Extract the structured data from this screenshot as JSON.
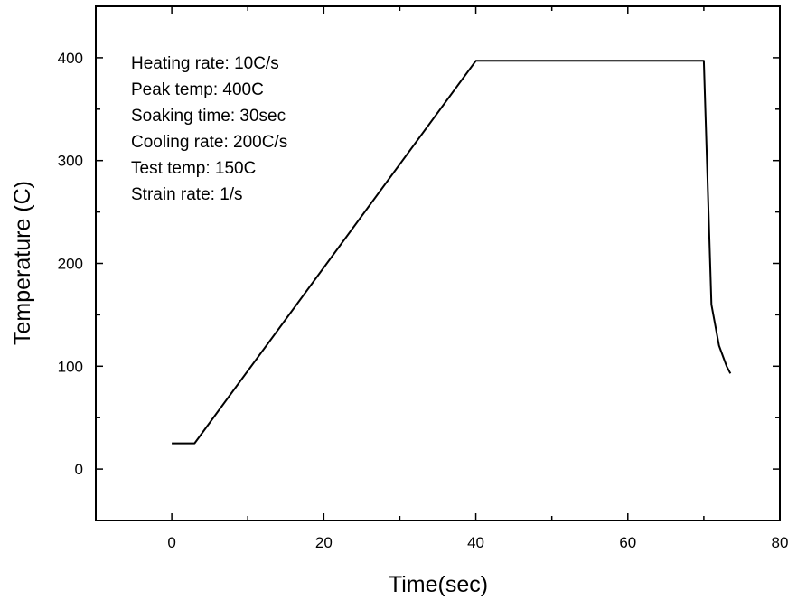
{
  "chart_data": {
    "type": "line",
    "title": "",
    "xlabel": "Time(sec)",
    "ylabel": "Temperature (C)",
    "xlim": [
      -10,
      80
    ],
    "ylim": [
      -50,
      450
    ],
    "xticks": [
      0,
      20,
      40,
      60,
      80
    ],
    "yticks": [
      0,
      100,
      200,
      300,
      400
    ],
    "grid": false,
    "legend": "none",
    "line_color": "#000000",
    "series": [
      {
        "x": [
          0,
          3,
          40,
          70,
          71,
          72,
          73,
          73.5
        ],
        "y": [
          25,
          25,
          397,
          397,
          160,
          120,
          100,
          93
        ]
      }
    ],
    "annotations": [
      "Heating rate: 10C/s",
      "Peak temp: 400C",
      "Soaking time: 30sec",
      "Cooling rate: 200C/s",
      "Test temp: 150C",
      "Strain rate: 1/s"
    ]
  }
}
